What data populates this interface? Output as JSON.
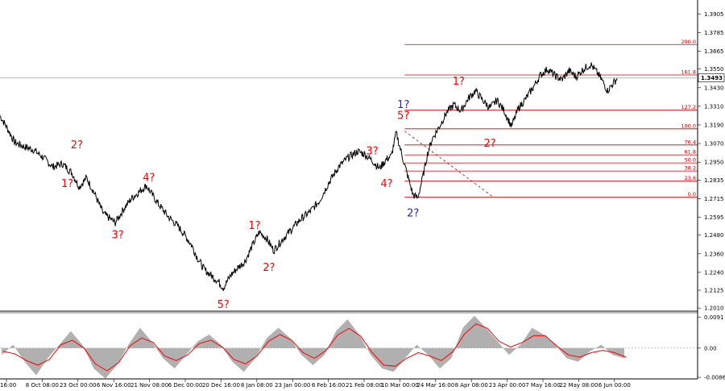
{
  "chart_data": [
    {
      "type": "line",
      "price_axis": {
        "ylim": [
          1.199,
          1.3995
        ],
        "ticks": [
          "1.3905",
          "1.3785",
          "1.3665",
          "1.3550",
          "1.3430",
          "1.3310",
          "1.3190",
          "1.3070",
          "1.2950",
          "1.2835",
          "1.2715",
          "1.2595",
          "1.2480",
          "1.2360",
          "1.2240",
          "1.2125",
          "1.2010"
        ],
        "current_price": "1.3493",
        "current_value": 1.3493
      },
      "price_path": [
        [
          0,
          1.325
        ],
        [
          3,
          1.317
        ],
        [
          6,
          1.308
        ],
        [
          10,
          1.305
        ],
        [
          14,
          1.303
        ],
        [
          18,
          1.298
        ],
        [
          22,
          1.292
        ],
        [
          26,
          1.294
        ],
        [
          30,
          1.288
        ],
        [
          33,
          1.279
        ],
        [
          36,
          1.285
        ],
        [
          39,
          1.276
        ],
        [
          43,
          1.262
        ],
        [
          48,
          1.256
        ],
        [
          52,
          1.266
        ],
        [
          55,
          1.272
        ],
        [
          58,
          1.276
        ],
        [
          61,
          1.28
        ],
        [
          63,
          1.275
        ],
        [
          66,
          1.268
        ],
        [
          70,
          1.26
        ],
        [
          74,
          1.254
        ],
        [
          77,
          1.248
        ],
        [
          80,
          1.241
        ],
        [
          82,
          1.234
        ],
        [
          85,
          1.226
        ],
        [
          88,
          1.222
        ],
        [
          91,
          1.218
        ],
        [
          93,
          1.214
        ],
        [
          96,
          1.222
        ],
        [
          99,
          1.227
        ],
        [
          102,
          1.231
        ],
        [
          105,
          1.241
        ],
        [
          108,
          1.25
        ],
        [
          111,
          1.246
        ],
        [
          114,
          1.238
        ],
        [
          117,
          1.244
        ],
        [
          121,
          1.251
        ],
        [
          125,
          1.258
        ],
        [
          129,
          1.263
        ],
        [
          133,
          1.27
        ],
        [
          137,
          1.282
        ],
        [
          141,
          1.292
        ],
        [
          145,
          1.298
        ],
        [
          149,
          1.302
        ],
        [
          152,
          1.3
        ],
        [
          155,
          1.296
        ],
        [
          158,
          1.291
        ],
        [
          161,
          1.297
        ],
        [
          163,
          1.299
        ],
        [
          165,
          1.314
        ],
        [
          166,
          1.308
        ],
        [
          168,
          1.296
        ],
        [
          170,
          1.285
        ],
        [
          172,
          1.274
        ],
        [
          174,
          1.272
        ],
        [
          176,
          1.285
        ],
        [
          178,
          1.3
        ],
        [
          180,
          1.31
        ],
        [
          183,
          1.318
        ],
        [
          186,
          1.327
        ],
        [
          189,
          1.332
        ],
        [
          192,
          1.328
        ],
        [
          195,
          1.336
        ],
        [
          198,
          1.341
        ],
        [
          201,
          1.335
        ],
        [
          204,
          1.33
        ],
        [
          207,
          1.335
        ],
        [
          210,
          1.328
        ],
        [
          213,
          1.318
        ],
        [
          216,
          1.33
        ],
        [
          219,
          1.336
        ],
        [
          222,
          1.343
        ],
        [
          225,
          1.351
        ],
        [
          228,
          1.355
        ],
        [
          231,
          1.351
        ],
        [
          234,
          1.348
        ],
        [
          237,
          1.354
        ],
        [
          240,
          1.35
        ],
        [
          243,
          1.355
        ],
        [
          246,
          1.358
        ],
        [
          249,
          1.352
        ],
        [
          251,
          1.347
        ],
        [
          253,
          1.341
        ],
        [
          255,
          1.345
        ],
        [
          257,
          1.349
        ]
      ],
      "fib_levels": [
        {
          "label": "0.0",
          "value": 1.2724
        },
        {
          "label": "23.6",
          "value": 1.2828
        },
        {
          "label": "38.2",
          "value": 1.2893
        },
        {
          "label": "50.0",
          "value": 1.2945
        },
        {
          "label": "61.8",
          "value": 1.2997
        },
        {
          "label": "76.4",
          "value": 1.3061
        },
        {
          "label": "100.0",
          "value": 1.3165
        },
        {
          "label": "127.2",
          "value": 1.3285
        },
        {
          "label": "161.8",
          "value": 1.3512
        },
        {
          "label": "200.0",
          "value": 1.3708
        }
      ],
      "wave_labels": [
        {
          "text": "2?",
          "color": "#ff0000",
          "x": 32,
          "y": 1.304
        },
        {
          "text": "1?",
          "color": "#ff0000",
          "x": 28,
          "y": 1.279
        },
        {
          "text": "3?",
          "color": "#ff0000",
          "x": 49,
          "y": 1.246
        },
        {
          "text": "4?",
          "color": "#ff0000",
          "x": 62,
          "y": 1.283
        },
        {
          "text": "5?",
          "color": "#ff0000",
          "x": 93,
          "y": 1.201
        },
        {
          "text": "1?",
          "color": "#ff0000",
          "x": 106,
          "y": 1.252
        },
        {
          "text": "2?",
          "color": "#ff0000",
          "x": 112,
          "y": 1.225
        },
        {
          "text": "3?",
          "color": "#ff0000",
          "x": 155,
          "y": 1.3
        },
        {
          "text": "4?",
          "color": "#ff0000",
          "x": 161,
          "y": 1.279
        },
        {
          "text": "1?",
          "color": "#2222dd",
          "x": 168,
          "y": 1.33
        },
        {
          "text": "5?",
          "color": "#ff0000",
          "x": 168,
          "y": 1.323
        },
        {
          "text": "2?",
          "color": "#2222dd",
          "x": 172,
          "y": 1.26
        },
        {
          "text": "1?",
          "color": "#ff0000",
          "x": 191,
          "y": 1.345
        },
        {
          "text": "2?",
          "color": "#ff0000",
          "x": 204,
          "y": 1.305
        }
      ]
    },
    {
      "type": "area",
      "oscillator_axis": {
        "ylim": [
          -0.0086,
          0.0097
        ],
        "ticks": [
          "0.0091",
          "0.00",
          "-0.00862"
        ]
      },
      "values": [
        -0.002,
        0.001,
        -0.004,
        -0.008,
        -0.003,
        0.001,
        0.005,
        0.001,
        -0.006,
        -0.009,
        -0.005,
        0.001,
        0.006,
        0.002,
        -0.003,
        -0.006,
        -0.002,
        0.002,
        0.004,
        0.001,
        -0.004,
        -0.007,
        -0.003,
        0.003,
        0.006,
        0.003,
        -0.002,
        -0.005,
        -0.002,
        0.005,
        0.0085,
        0.004,
        -0.002,
        -0.006,
        -0.007,
        -0.003,
        0.001,
        -0.002,
        -0.006,
        -0.003,
        0.006,
        0.0095,
        0.006,
        0.002,
        -0.002,
        0.001,
        0.006,
        0.004,
        0.001,
        -0.003,
        -0.004,
        -0.001,
        0.001,
        -0.002,
        -0.003
      ]
    }
  ],
  "time_axis": {
    "labels": [
      "16:00",
      "8 Oct 08:00",
      "23 Oct 00:00",
      "6 Nov 16:00",
      "21 Nov 08:00",
      "6 Dec 00:00",
      "20 Dec 16:00",
      "8 Jan 08:00",
      "23 Jan 00:00",
      "6 Feb 16:00",
      "21 Feb 08:00",
      "10 Mar 00:00",
      "24 Mar 16:00",
      "8 Apr 08:00",
      "23 Apr 00:00",
      "7 May 16:00",
      "22 May 08:00",
      "6 Jun 00:00"
    ]
  },
  "colors": {
    "price_line": "#000000",
    "fib_line": "#cc0000",
    "current_price_line": "#b8b8b8",
    "osc_fill": "#b0b0b0",
    "osc_signal": "#ff0000",
    "wave_red": "#ff0000",
    "wave_blue": "#2222dd"
  }
}
